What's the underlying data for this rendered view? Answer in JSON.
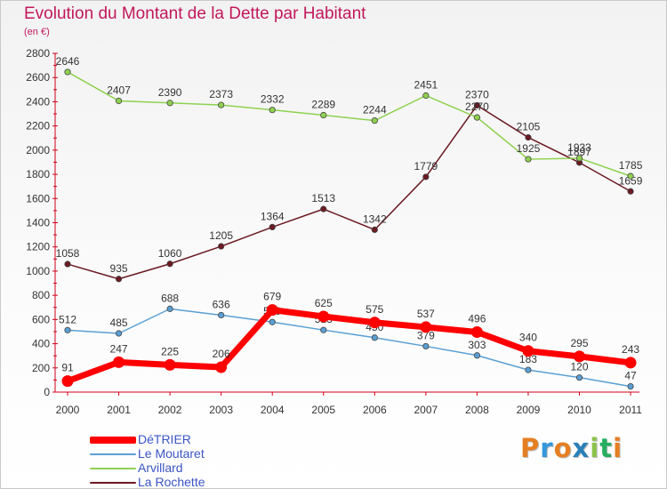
{
  "title": "Evolution du Montant de la Dette par Habitant",
  "subtitle": "(en €)",
  "logo": {
    "text": "Proxiti",
    "letter_colors": [
      "#e67e22",
      "#3498db",
      "#e67e22",
      "#2980b9",
      "#8bc34a",
      "#27ae60",
      "#e67e22"
    ]
  },
  "chart_data": {
    "type": "line",
    "title": "Evolution du Montant de la Dette par Habitant",
    "ylabel": "(en €)",
    "xlabel": "",
    "x": [
      "2000",
      "2001",
      "2002",
      "2003",
      "2004",
      "2005",
      "2006",
      "2007",
      "2008",
      "2009",
      "2010",
      "2011"
    ],
    "ylim": [
      0,
      2800
    ],
    "yticks": [
      0,
      200,
      400,
      600,
      800,
      1000,
      1200,
      1400,
      1600,
      1800,
      2000,
      2200,
      2400,
      2600,
      2800
    ],
    "grid": false,
    "legend_position": "bottom-left",
    "series": [
      {
        "name": "La Rochette",
        "color": "#6b1a22",
        "values": [
          1058,
          935,
          1060,
          1205,
          1364,
          1513,
          1342,
          1779,
          2370,
          2105,
          1897,
          1659
        ]
      },
      {
        "name": "Arvillard",
        "color": "#8fd14f",
        "values": [
          2646,
          2407,
          2390,
          2373,
          2332,
          2289,
          2244,
          2451,
          2270,
          1925,
          1933,
          1785
        ]
      },
      {
        "name": "Le Moutaret",
        "color": "#5a9fd4",
        "values": [
          512,
          485,
          688,
          636,
          579,
          513,
          450,
          379,
          303,
          183,
          120,
          47
        ]
      },
      {
        "name": "DéTRIER",
        "color": "#ff0000",
        "values": [
          91,
          247,
          225,
          206,
          679,
          625,
          575,
          537,
          496,
          340,
          295,
          243
        ]
      }
    ],
    "legend_order": [
      "DéTRIER",
      "Le Moutaret",
      "Arvillard",
      "La Rochette"
    ]
  }
}
